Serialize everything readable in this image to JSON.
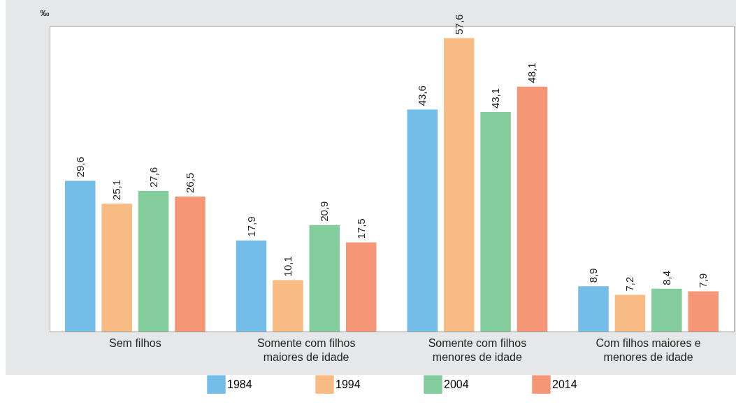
{
  "chart_data": {
    "type": "bar",
    "ylabel": "‰",
    "categories": [
      "Sem filhos",
      "Somente com filhos maiores de idade",
      "Somente com filhos menores de idade",
      "Com filhos maiores e menores de idade"
    ],
    "series": [
      {
        "name": "1984",
        "color": "#74bde8",
        "values": [
          29.6,
          17.9,
          43.6,
          8.9
        ],
        "value_labels": [
          "29,6",
          "17,9",
          "43,6",
          "8,9"
        ]
      },
      {
        "name": "1994",
        "color": "#f9bb84",
        "values": [
          25.1,
          10.1,
          57.6,
          7.2
        ],
        "value_labels": [
          "25,1",
          "10,1",
          "57,6",
          "7,2"
        ]
      },
      {
        "name": "2004",
        "color": "#83cc9b",
        "values": [
          27.6,
          20.9,
          43.1,
          8.4
        ],
        "value_labels": [
          "27,6",
          "20,9",
          "43,1",
          "8,4"
        ]
      },
      {
        "name": "2014",
        "color": "#f59677",
        "values": [
          26.5,
          17.5,
          48.1,
          7.9
        ],
        "value_labels": [
          "26,5",
          "17,5",
          "48,1",
          "7,9"
        ]
      }
    ],
    "legend": "bottom",
    "tick_labels": "x",
    "grid": false
  }
}
